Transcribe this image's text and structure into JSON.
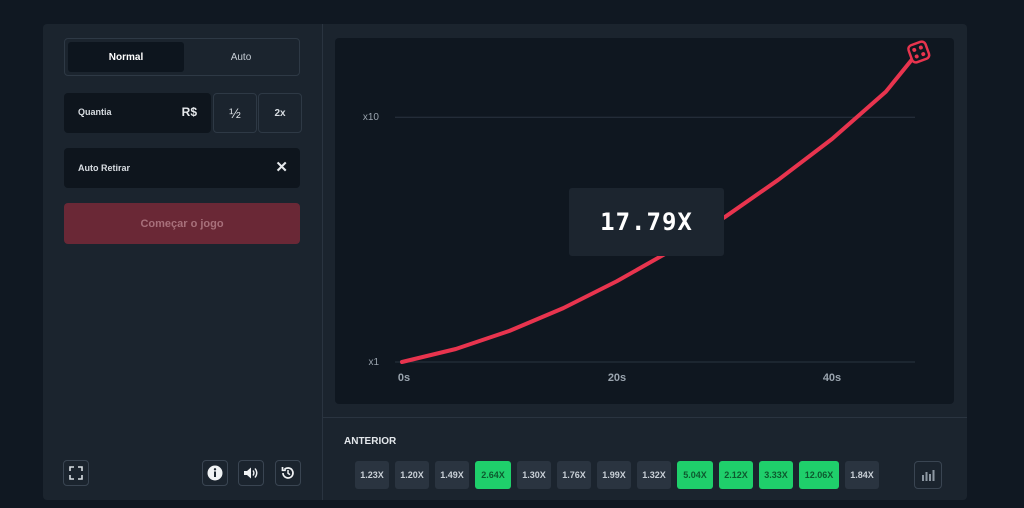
{
  "controls": {
    "mode_normal": "Normal",
    "mode_auto": "Auto",
    "amount_label": "Quantia",
    "currency": "R$",
    "half_label": "½",
    "double_label": "2x",
    "auto_cashout_label": "Auto Retirar",
    "clear_symbol": "✕",
    "start_label": "Começar o jogo"
  },
  "footer_icons": [
    "fullscreen-icon",
    "info-icon",
    "volume-icon",
    "history-icon"
  ],
  "game": {
    "multiplier": "17.79X",
    "curve_color": "#e8344e"
  },
  "chart_data": {
    "type": "line",
    "title": "",
    "x_ticks": [
      "0s",
      "20s",
      "40s"
    ],
    "y_ticks": [
      "x1",
      "x10"
    ],
    "xlim": [
      0,
      48
    ],
    "ylim": [
      1,
      17.79
    ],
    "y_scale": "log",
    "series": [
      {
        "x": [
          0,
          5,
          10,
          15,
          20,
          25,
          30,
          35,
          40,
          45,
          47.7
        ],
        "y": [
          1,
          1.13,
          1.34,
          1.66,
          2.14,
          2.85,
          3.9,
          5.55,
          8.15,
          12.7,
          17.79
        ]
      }
    ],
    "grid": true
  },
  "history": {
    "label": "ANTERIOR",
    "items": [
      {
        "value": "1.23X",
        "win": false
      },
      {
        "value": "1.20X",
        "win": false
      },
      {
        "value": "1.49X",
        "win": false
      },
      {
        "value": "2.64X",
        "win": true
      },
      {
        "value": "1.30X",
        "win": false
      },
      {
        "value": "1.76X",
        "win": false
      },
      {
        "value": "1.99X",
        "win": false
      },
      {
        "value": "1.32X",
        "win": false
      },
      {
        "value": "5.04X",
        "win": true
      },
      {
        "value": "2.12X",
        "win": true
      },
      {
        "value": "3.33X",
        "win": true
      },
      {
        "value": "12.06X",
        "win": true
      },
      {
        "value": "1.84X",
        "win": false
      }
    ],
    "stats_icon": "bar-chart-icon"
  }
}
